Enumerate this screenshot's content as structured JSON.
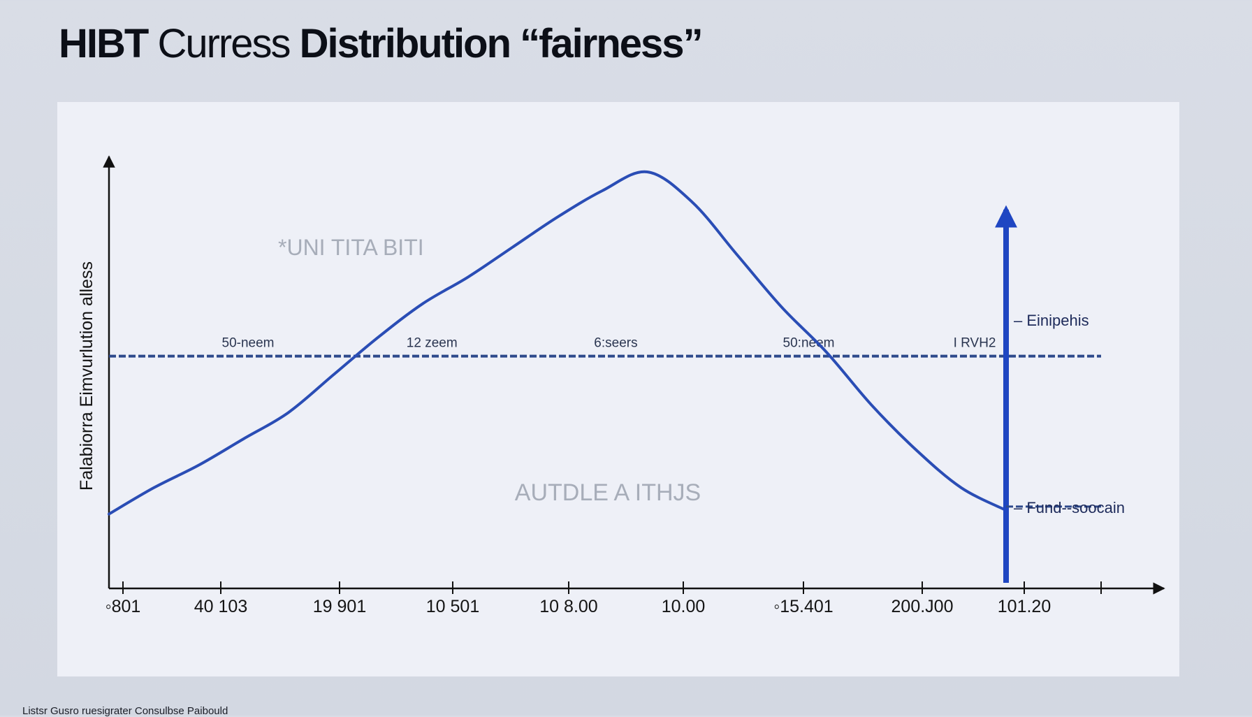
{
  "title": {
    "part1": "HIBT",
    "part2": " Curress ",
    "part3": "Distribution “fairness”"
  },
  "footer": "Listsr Gusro ruesigrater Consulbse Paibould",
  "colors": {
    "curve": "#2a4db5",
    "threshold": "#2e4a8c",
    "marker": "#1f46c2",
    "axis": "#111111",
    "text": "#141414",
    "watermark": "#a7adb9",
    "background": "#d9dde6",
    "panel": "#eef0f7"
  },
  "chart_data": {
    "type": "line",
    "title": "HIBT Curress Distribution “fairness”",
    "ylabel": "Falabiorra Eimvurlution alless",
    "xlabel": "",
    "x_ticks": [
      "◦801",
      "40 103",
      "19 901",
      "10 501",
      "10 8.00",
      "10.00",
      "◦15.401",
      "200.J00",
      "101.20"
    ],
    "xlim": [
      0,
      10
    ],
    "ylim": [
      0,
      100
    ],
    "grid": false,
    "series": [
      {
        "values": [
          [
            0,
            9
          ],
          [
            0.5,
            16
          ],
          [
            1,
            22
          ],
          [
            1.5,
            29
          ],
          [
            2,
            36
          ],
          [
            2.5,
            46
          ],
          [
            3,
            56
          ],
          [
            3.5,
            65
          ],
          [
            4,
            72
          ],
          [
            4.5,
            80
          ],
          [
            5,
            88
          ],
          [
            5.5,
            95
          ],
          [
            6,
            100
          ],
          [
            6.5,
            92
          ],
          [
            7,
            78
          ],
          [
            7.5,
            64
          ],
          [
            8,
            52
          ],
          [
            8.5,
            38
          ],
          [
            9,
            26
          ],
          [
            9.5,
            16
          ],
          [
            10,
            10
          ]
        ]
      }
    ],
    "threshold": {
      "y": 51,
      "segment_labels": [
        {
          "x": 1.55,
          "text": "50-neem"
        },
        {
          "x": 3.6,
          "text": "12 zeem"
        },
        {
          "x": 5.65,
          "text": "6:seers"
        },
        {
          "x": 7.8,
          "text": "50:neem"
        },
        {
          "x": 9.65,
          "text": "I RVH2"
        }
      ]
    },
    "marker": {
      "x": 10,
      "label_top": "Einipehis",
      "label_bottom": "Fund--soocain",
      "dashed_ref_y": 11
    },
    "annotations": [
      "*UNI TITA BITI",
      "AUTDLE A ITHJS"
    ]
  }
}
